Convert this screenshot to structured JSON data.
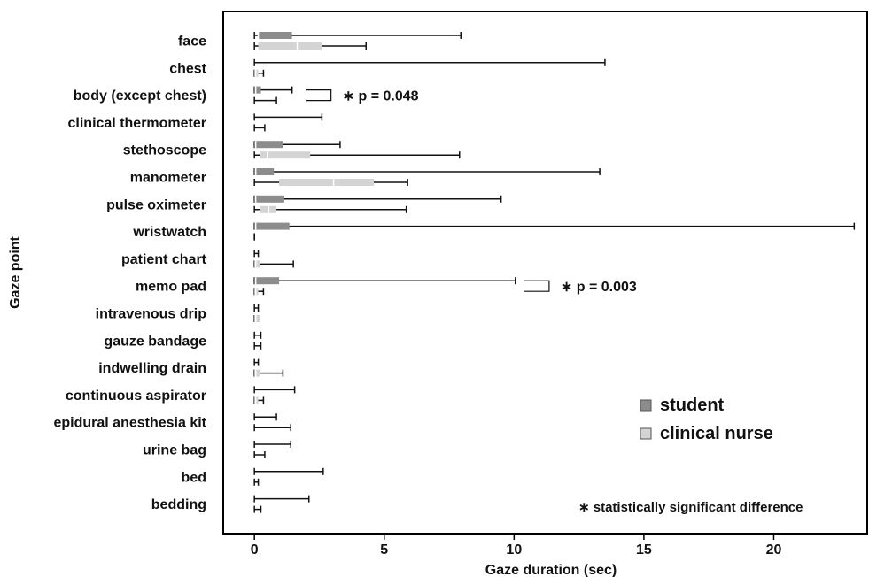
{
  "chart_data": {
    "type": "boxplot",
    "orientation": "horizontal",
    "xlabel": "Gaze duration (sec)",
    "ylabel": "Gaze point",
    "xlim": [
      -1.2,
      23.6
    ],
    "x_ticks": [
      0,
      5,
      10,
      15,
      20
    ],
    "grid": false,
    "categories": [
      "face",
      "chest",
      "body (except chest)",
      "clinical thermometer",
      "stethoscope",
      "manometer",
      "pulse oximeter",
      "wristwatch",
      "patient chart",
      "memo pad",
      "intravenous drip",
      "gauze bandage",
      "indwelling drain",
      "continuous aspirator",
      "epidural anesthesia kit",
      "urine bag",
      "bed",
      "bedding"
    ],
    "series": [
      {
        "name": "student",
        "color": "#8c8c8c",
        "boxes": [
          {
            "min": 0,
            "q1": 0.15,
            "median": 0.15,
            "q3": 1.45,
            "max": 7.95
          },
          {
            "min": 0,
            "q1": 0,
            "median": 0,
            "q3": 0,
            "max": 13.5
          },
          {
            "min": 0,
            "q1": 0,
            "median": 0.05,
            "q3": 0.25,
            "max": 1.45
          },
          {
            "min": 0,
            "q1": 0,
            "median": 0,
            "q3": 0,
            "max": 2.6
          },
          {
            "min": 0,
            "q1": 0,
            "median": 0.05,
            "q3": 1.1,
            "max": 3.3
          },
          {
            "min": 0,
            "q1": 0,
            "median": 0.05,
            "q3": 0.75,
            "max": 13.3
          },
          {
            "min": 0,
            "q1": 0,
            "median": 0.05,
            "q3": 1.15,
            "max": 9.5
          },
          {
            "min": 0,
            "q1": 0,
            "median": 0.05,
            "q3": 1.35,
            "max": 23.1
          },
          {
            "min": 0,
            "q1": 0,
            "median": 0,
            "q3": 0,
            "max": 0.15
          },
          {
            "min": 0,
            "q1": 0,
            "median": 0.05,
            "q3": 0.95,
            "max": 10.05
          },
          {
            "min": 0,
            "q1": 0,
            "median": 0,
            "q3": 0,
            "max": 0.15
          },
          {
            "min": 0,
            "q1": 0,
            "median": 0,
            "q3": 0,
            "max": 0.25
          },
          {
            "min": 0,
            "q1": 0,
            "median": 0,
            "q3": 0,
            "max": 0.15
          },
          {
            "min": 0,
            "q1": 0,
            "median": 0,
            "q3": 0,
            "max": 1.55
          },
          {
            "min": 0,
            "q1": 0,
            "median": 0,
            "q3": 0,
            "max": 0.85
          },
          {
            "min": 0,
            "q1": 0,
            "median": 0,
            "q3": 0,
            "max": 1.4
          },
          {
            "min": 0,
            "q1": 0,
            "median": 0,
            "q3": 0,
            "max": 2.65
          },
          {
            "min": 0,
            "q1": 0,
            "median": 0,
            "q3": 0,
            "max": 2.1
          }
        ]
      },
      {
        "name": "clinical nurse",
        "color": "#d4d4d4",
        "boxes": [
          {
            "min": 0,
            "q1": 0.15,
            "median": 1.65,
            "q3": 2.6,
            "max": 4.3
          },
          {
            "min": 0,
            "q1": 0,
            "median": 0.05,
            "q3": 0.15,
            "max": 0.35
          },
          {
            "min": 0,
            "q1": 0,
            "median": 0,
            "q3": 0,
            "max": 0.85
          },
          {
            "min": 0,
            "q1": 0,
            "median": 0,
            "q3": 0,
            "max": 0.4
          },
          {
            "min": 0,
            "q1": 0.2,
            "median": 0.5,
            "q3": 2.15,
            "max": 7.9
          },
          {
            "min": 0,
            "q1": 0.95,
            "median": 3.05,
            "q3": 4.6,
            "max": 5.9
          },
          {
            "min": 0,
            "q1": 0.2,
            "median": 0.55,
            "q3": 0.85,
            "max": 5.85
          },
          {
            "min": 0,
            "q1": 0,
            "median": 0,
            "q3": 0,
            "max": 0
          },
          {
            "min": 0,
            "q1": 0,
            "median": 0.05,
            "q3": 0.2,
            "max": 1.5
          },
          {
            "min": 0,
            "q1": 0,
            "median": 0.05,
            "q3": 0.15,
            "max": 0.35
          },
          {
            "min": 0,
            "q1": 0,
            "median": 0.05,
            "q3": 0.2,
            "max": 0.2
          },
          {
            "min": 0,
            "q1": 0,
            "median": 0,
            "q3": 0,
            "max": 0.25
          },
          {
            "min": 0,
            "q1": 0,
            "median": 0.05,
            "q3": 0.2,
            "max": 1.1
          },
          {
            "min": 0,
            "q1": 0,
            "median": 0.05,
            "q3": 0.15,
            "max": 0.35
          },
          {
            "min": 0,
            "q1": 0,
            "median": 0,
            "q3": 0,
            "max": 1.4
          },
          {
            "min": 0,
            "q1": 0,
            "median": 0,
            "q3": 0,
            "max": 0.4
          },
          {
            "min": 0,
            "q1": 0,
            "median": 0,
            "q3": 0,
            "max": 0.15
          },
          {
            "min": 0,
            "q1": 0,
            "median": 0,
            "q3": 0,
            "max": 0.25
          }
        ]
      }
    ],
    "legend": {
      "position": "lower-right",
      "entries": [
        {
          "label": "student",
          "color": "#8c8c8c"
        },
        {
          "label": "clinical nurse",
          "color": "#d4d4d4"
        }
      ]
    },
    "annotations": [
      {
        "category_index": 2,
        "bracket_x_start": 2.0,
        "bracket_x_end": 2.95,
        "text": "∗ p = 0.048"
      },
      {
        "category_index": 9,
        "bracket_x_start": 10.4,
        "bracket_x_end": 11.35,
        "text": "∗ p = 0.003"
      }
    ],
    "footnote": "∗ statistically significant difference"
  }
}
